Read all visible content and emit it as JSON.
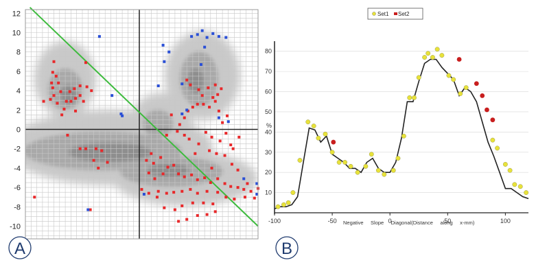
{
  "panels": {
    "a_label": "A",
    "b_label": "B"
  },
  "colors": {
    "red": "#e8282a",
    "blue": "#2a4fd6",
    "green": "#3dbb3d",
    "yellow": "#e8e23a",
    "dark_red": "#c81e1e",
    "line": "#222222",
    "grid": "#c8c8c8"
  },
  "chart_data": [
    {
      "type": "scatter",
      "panel": "A",
      "xlim": [
        -10,
        10
      ],
      "ylim": [
        -10,
        12
      ],
      "xticks": [],
      "yticks": [
        "-10",
        "-8",
        "-6",
        "-4",
        "-2",
        "0",
        "2",
        "4",
        "6",
        "8",
        "10",
        "12"
      ],
      "grid": true,
      "background": "grey density contours",
      "diagonal": {
        "x": [
          -9.6,
          10
        ],
        "y": [
          12.6,
          -10
        ]
      },
      "series": [
        {
          "color": "red",
          "points": [
            [
              -9.2,
              -7
            ],
            [
              -7.5,
              7
            ],
            [
              -7.6,
              5.9
            ],
            [
              -7.3,
              5.5
            ],
            [
              -7.7,
              4.8
            ],
            [
              -7.1,
              4.8
            ],
            [
              -7.6,
              4.3
            ],
            [
              -6.9,
              3.9
            ],
            [
              -7.5,
              3.5
            ],
            [
              -8.4,
              2.9
            ],
            [
              -7.8,
              3.1
            ],
            [
              -7.2,
              2.7
            ],
            [
              -6.4,
              2.9
            ],
            [
              -6.0,
              2.9
            ],
            [
              -5.6,
              3.2
            ],
            [
              -6.1,
              3.9
            ],
            [
              -5.7,
              4.2
            ],
            [
              -5.2,
              4.5
            ],
            [
              -5.2,
              3.5
            ],
            [
              -4.9,
              2.9
            ],
            [
              -4.6,
              4.4
            ],
            [
              -4.2,
              4.0
            ],
            [
              -6.6,
              2.1
            ],
            [
              -6.8,
              1.5
            ],
            [
              -5.6,
              1.9
            ],
            [
              -6.3,
              -0.6
            ],
            [
              -5.2,
              -2.0
            ],
            [
              -4.7,
              -2.0
            ],
            [
              -3.8,
              -2.0
            ],
            [
              -3.3,
              -2.2
            ],
            [
              -4.0,
              -3.2
            ],
            [
              -4.7,
              6.9
            ],
            [
              -3.6,
              -4.0
            ],
            [
              -2.8,
              -3.4
            ],
            [
              -4.3,
              -8.3
            ],
            [
              0.2,
              -6.2
            ],
            [
              0.8,
              -6.6
            ],
            [
              1.6,
              -6.4
            ],
            [
              1.0,
              -2.5
            ],
            [
              1.8,
              -2.9
            ],
            [
              0.6,
              -3.2
            ],
            [
              1.2,
              -3.5
            ],
            [
              0.8,
              -4.5
            ],
            [
              2.0,
              -4.6
            ],
            [
              1.3,
              -5.1
            ],
            [
              2.9,
              -3.7
            ],
            [
              2.4,
              -3.9
            ],
            [
              3.3,
              -4.6
            ],
            [
              3.8,
              -4.9
            ],
            [
              4.4,
              -4.7
            ],
            [
              4.9,
              -5.2
            ],
            [
              5.5,
              -5.0
            ],
            [
              6.0,
              -5.5
            ],
            [
              6.6,
              -5.1
            ],
            [
              7.2,
              -5.6
            ],
            [
              7.7,
              -5.9
            ],
            [
              8.3,
              -6.0
            ],
            [
              8.8,
              -6.2
            ],
            [
              9.4,
              -6.4
            ],
            [
              10.0,
              -6.1
            ],
            [
              9.7,
              -7.1
            ],
            [
              8.9,
              -7.0
            ],
            [
              8.0,
              -7.2
            ],
            [
              7.3,
              -7.0
            ],
            [
              6.6,
              -6.5
            ],
            [
              5.7,
              -6.4
            ],
            [
              4.9,
              -6.6
            ],
            [
              4.3,
              -6.2
            ],
            [
              3.6,
              -6.4
            ],
            [
              2.9,
              -6.5
            ],
            [
              2.3,
              -6.6
            ],
            [
              1.5,
              -7.0
            ],
            [
              2.1,
              -8.1
            ],
            [
              3.0,
              -8.3
            ],
            [
              3.6,
              -7.9
            ],
            [
              4.5,
              -7.6
            ],
            [
              5.4,
              -7.6
            ],
            [
              6.2,
              -7.7
            ],
            [
              4.9,
              -8.9
            ],
            [
              5.7,
              -8.8
            ],
            [
              6.4,
              -8.5
            ],
            [
              3.3,
              -9.5
            ],
            [
              4.0,
              -9.3
            ],
            [
              4.0,
              5.1
            ],
            [
              4.3,
              4.6
            ],
            [
              5.0,
              4.1
            ],
            [
              5.8,
              4.3
            ],
            [
              6.4,
              4.6
            ],
            [
              6.9,
              4.2
            ],
            [
              6.6,
              3.6
            ],
            [
              6.4,
              2.9
            ],
            [
              6.2,
              3.3
            ],
            [
              5.3,
              3.5
            ],
            [
              4.9,
              2.6
            ],
            [
              4.5,
              2.3
            ],
            [
              4.1,
              1.9
            ],
            [
              3.8,
              1.2
            ],
            [
              3.4,
              0.5
            ],
            [
              3.2,
              -0.2
            ],
            [
              3.8,
              -0.6
            ],
            [
              4.2,
              -1.0
            ],
            [
              5.0,
              -1.5
            ],
            [
              5.6,
              -0.3
            ],
            [
              6.1,
              -0.8
            ],
            [
              6.8,
              -1.2
            ],
            [
              7.3,
              -0.4
            ],
            [
              7.7,
              -1.6
            ],
            [
              6.5,
              -2.5
            ],
            [
              7.2,
              -2.7
            ],
            [
              7.8,
              -3.6
            ],
            [
              8.3,
              -4.2
            ],
            [
              7.9,
              -2.0
            ],
            [
              8.4,
              -0.8
            ],
            [
              5.9,
              2.3
            ],
            [
              6.7,
              1.9
            ],
            [
              7.4,
              1.4
            ],
            [
              7.0,
              0.7
            ],
            [
              5.4,
              2.6
            ],
            [
              2.7,
              1.5
            ],
            [
              2.3,
              -0.6
            ],
            [
              4.7,
              -2.5
            ],
            [
              5.9,
              -2.2
            ],
            [
              6.1,
              -4.0
            ],
            [
              9.1,
              -5.6
            ]
          ]
        },
        {
          "color": "blue",
          "points": [
            [
              -3.5,
              9.6
            ],
            [
              -1.6,
              1.6
            ],
            [
              -1.5,
              1.4
            ],
            [
              -2.4,
              3.5
            ],
            [
              2.0,
              8.7
            ],
            [
              2.1,
              7.0
            ],
            [
              3.6,
              4.7
            ],
            [
              1.6,
              4.5
            ],
            [
              3.6,
              1.6
            ],
            [
              4.0,
              2.0
            ],
            [
              4.4,
              9.6
            ],
            [
              4.9,
              9.8
            ],
            [
              5.3,
              10.2
            ],
            [
              5.7,
              9.5
            ],
            [
              6.2,
              9.9
            ],
            [
              6.7,
              9.6
            ],
            [
              7.3,
              9.5
            ],
            [
              5.5,
              8.5
            ],
            [
              5.2,
              6.7
            ],
            [
              6.7,
              1.2
            ],
            [
              7.5,
              0.8
            ],
            [
              0.4,
              -6.7
            ],
            [
              8.8,
              -5.1
            ],
            [
              9.9,
              -5.6
            ],
            [
              9.9,
              -6.7
            ],
            [
              -4.5,
              -8.3
            ],
            [
              2.5,
              8.0
            ]
          ]
        }
      ]
    },
    {
      "type": "line",
      "panel": "B",
      "xlabel": "Negative     Slope     Diagonal(Distance     along     x-mm)",
      "ylabel": "%",
      "xlim": [
        -100,
        120
      ],
      "ylim": [
        0,
        85
      ],
      "xticks": [
        "-100",
        "-50",
        "0",
        "50",
        "100"
      ],
      "yticks": [
        "10",
        "20",
        "30",
        "40",
        "50",
        "60",
        "70",
        "80"
      ],
      "legend": {
        "position": "top",
        "entries": [
          "Set1",
          "Set2"
        ]
      },
      "x": [
        -100,
        -95,
        -90,
        -85,
        -80,
        -75,
        -70,
        -65,
        -60,
        -55,
        -50,
        -45,
        -40,
        -35,
        -30,
        -25,
        -20,
        -15,
        -10,
        -5,
        0,
        5,
        10,
        15,
        20,
        25,
        30,
        35,
        40,
        45,
        50,
        55,
        60,
        65,
        70,
        75,
        80,
        85,
        90,
        95,
        100,
        105,
        110,
        115,
        120
      ],
      "series": [
        {
          "name": "Set1",
          "color": "line",
          "values": [
            2,
            3,
            3,
            4,
            8,
            25,
            42,
            41,
            35,
            38,
            29,
            27,
            25,
            22,
            22,
            20,
            25,
            27,
            22,
            20,
            20,
            25,
            37,
            55,
            55,
            65,
            74,
            76,
            76,
            72,
            69,
            66,
            58,
            62,
            60,
            55,
            45,
            35,
            28,
            20,
            12,
            12,
            10,
            8,
            7
          ]
        },
        {
          "name": "Set1",
          "color": "yellow",
          "points": [
            [
              -97,
              3
            ],
            [
              -92,
              4
            ],
            [
              -88,
              5
            ],
            [
              -84,
              10
            ],
            [
              -78,
              26
            ],
            [
              -71,
              45
            ],
            [
              -66,
              43
            ],
            [
              -62,
              37
            ],
            [
              -56,
              39
            ],
            [
              -50,
              30
            ],
            [
              -44,
              25
            ],
            [
              -39,
              25
            ],
            [
              -34,
              23
            ],
            [
              -28,
              20
            ],
            [
              -21,
              23
            ],
            [
              -16,
              29
            ],
            [
              -10,
              21
            ],
            [
              -5,
              19
            ],
            [
              3,
              21
            ],
            [
              7,
              27
            ],
            [
              12,
              38
            ],
            [
              17,
              57
            ],
            [
              21,
              57
            ],
            [
              25,
              67
            ],
            [
              30,
              77
            ],
            [
              33,
              79
            ],
            [
              37,
              77
            ],
            [
              41,
              81
            ],
            [
              45,
              78
            ],
            [
              51,
              68
            ],
            [
              55,
              66
            ],
            [
              61,
              59
            ],
            [
              66,
              62
            ],
            [
              89,
              36
            ],
            [
              93,
              32
            ],
            [
              100,
              24
            ],
            [
              104,
              21
            ],
            [
              108,
              14
            ],
            [
              113,
              13
            ],
            [
              118,
              10
            ]
          ]
        },
        {
          "name": "Set2",
          "color": "dark_red",
          "points": [
            [
              -49,
              35
            ],
            [
              60,
              76
            ],
            [
              75,
              64
            ],
            [
              80,
              58
            ],
            [
              84,
              51
            ],
            [
              89,
              46
            ]
          ]
        }
      ]
    }
  ]
}
